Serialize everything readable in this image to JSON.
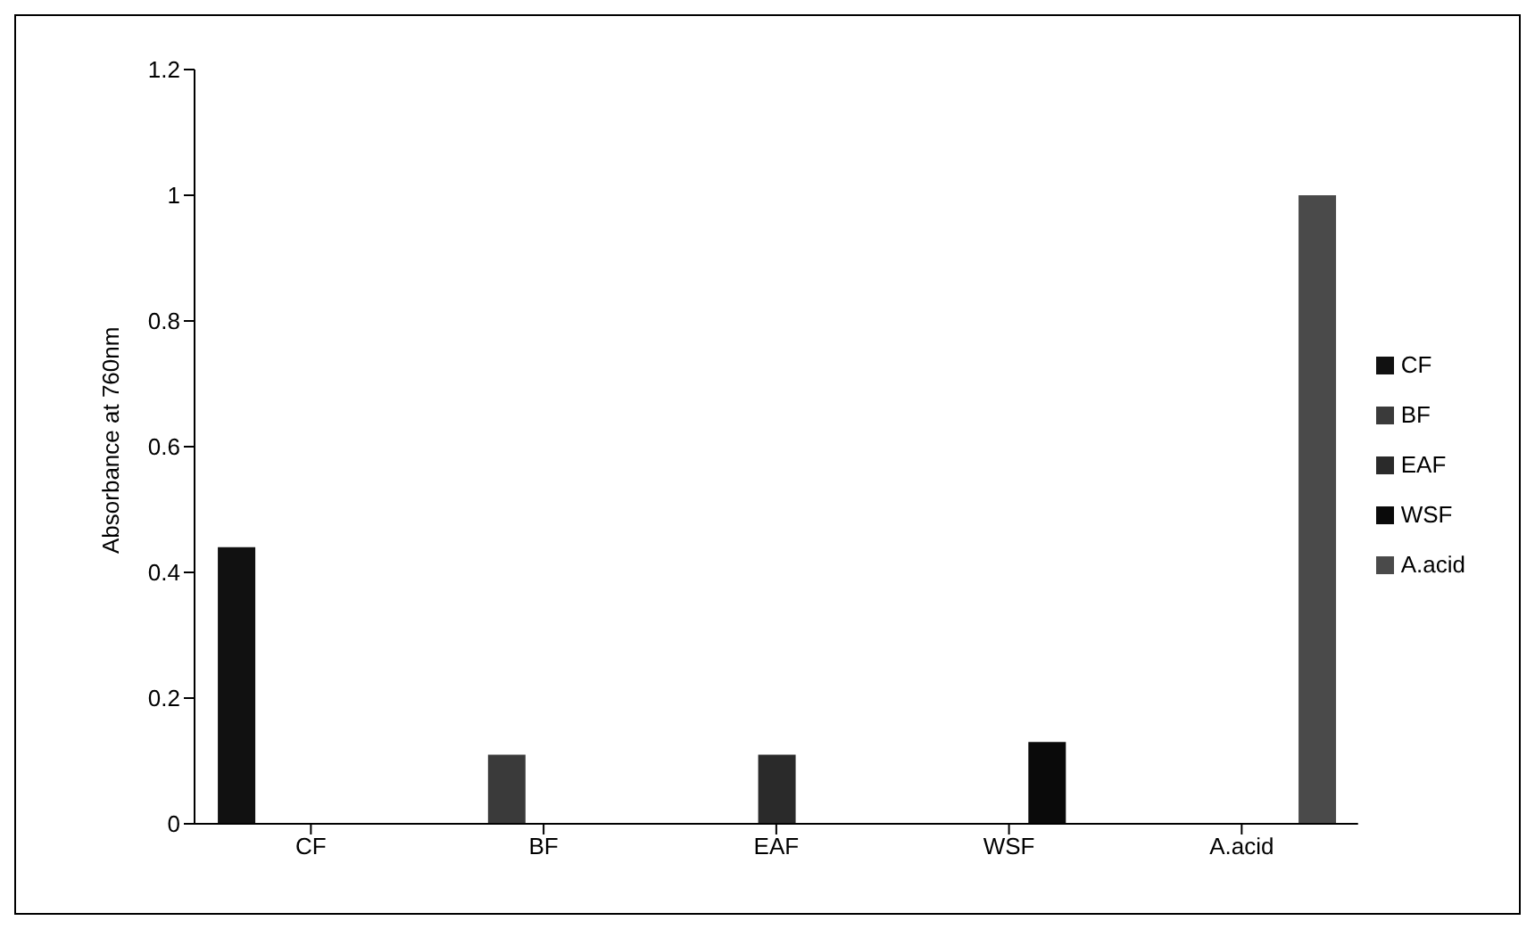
{
  "chart_data": {
    "type": "bar",
    "ylabel": "Absorbance at 760nm",
    "categories": [
      "CF",
      "BF",
      "EAF",
      "WSF",
      "A.acid"
    ],
    "series": [
      {
        "name": "CF",
        "color": "#111111",
        "values": [
          0.44,
          null,
          null,
          null,
          null
        ]
      },
      {
        "name": "BF",
        "color": "#3a3a3a",
        "values": [
          null,
          0.11,
          null,
          null,
          null
        ]
      },
      {
        "name": "EAF",
        "color": "#2a2a2a",
        "values": [
          null,
          null,
          0.11,
          null,
          null
        ]
      },
      {
        "name": "WSF",
        "color": "#0a0a0a",
        "values": [
          null,
          null,
          null,
          0.13,
          null
        ]
      },
      {
        "name": "A.acid",
        "color": "#4a4a4a",
        "values": [
          null,
          null,
          null,
          null,
          1
        ]
      }
    ],
    "ylim": [
      0,
      1.2
    ],
    "yticks": [
      0,
      0.2,
      0.4,
      0.6,
      0.8,
      1,
      1.2
    ],
    "grid": false,
    "legend": "right"
  }
}
